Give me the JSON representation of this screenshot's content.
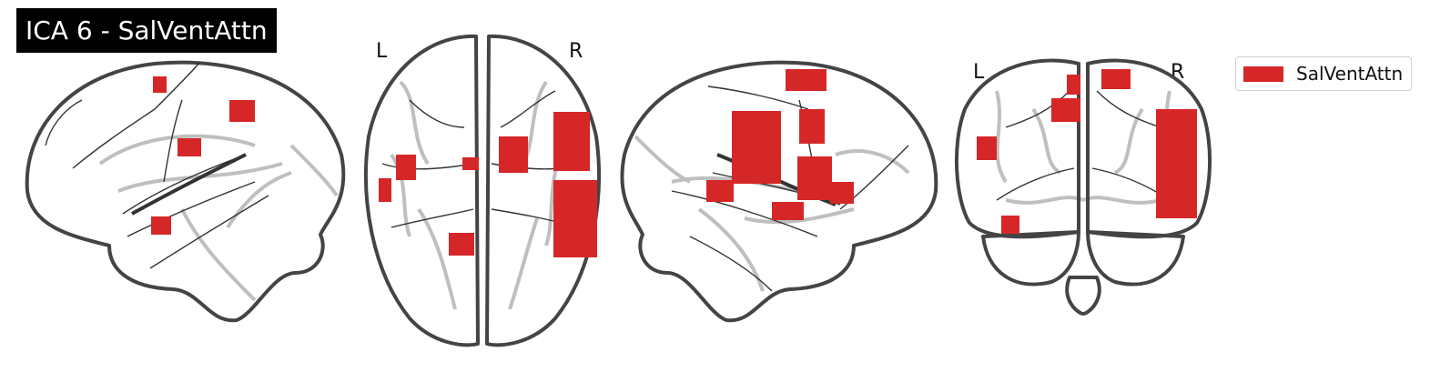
{
  "title": "ICA 6 - SalVentAttn",
  "views": {
    "axial": {
      "left_label": "L",
      "right_label": "R"
    },
    "coronal": {
      "left_label": "L",
      "right_label": "R"
    }
  },
  "legend": {
    "label": "SalVentAttn",
    "color": "#d62728"
  }
}
